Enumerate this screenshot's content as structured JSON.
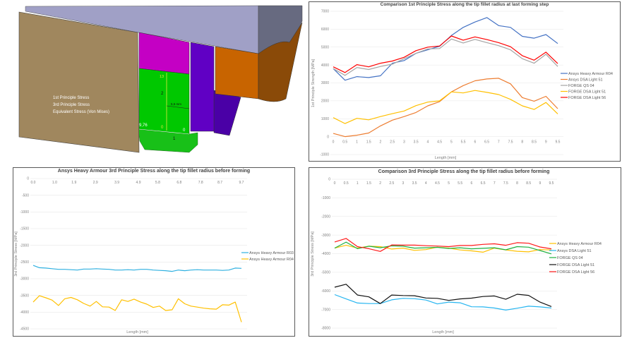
{
  "diagram": {
    "labels": [
      "1st Principle Stress",
      "3rd Principle Stress",
      "Equivalent Stress (Von Mises)"
    ],
    "annotations": {
      "top": "13",
      "middle": "2",
      "width": "5,5 mm",
      "left": "9,76",
      "bottom_yellow": "0",
      "bottom_right": "0",
      "lower": "1"
    }
  },
  "chart_data": [
    {
      "type": "line",
      "title": "Comparison 1st Principle Stress along the tip fillet radius at last forming step",
      "xlabel": "Length [mm]",
      "ylabel": "1st Principle Strength [MPa]",
      "ylim": [
        -1000,
        7000
      ],
      "yticks": [
        -1000,
        0,
        1000,
        2000,
        3000,
        4000,
        5000,
        6000,
        7000
      ],
      "grid": true,
      "legend": "right",
      "x": [
        0,
        0.5,
        1,
        1.5,
        2,
        2.5,
        3,
        3.5,
        4,
        4.5,
        5,
        5.5,
        6,
        6.5,
        7,
        7.5,
        8,
        8.5,
        9,
        9.5
      ],
      "xticklabels": [
        "0",
        "0.5",
        "1",
        "1.5",
        "2",
        "2.5",
        "3",
        "3.5",
        "4",
        "4.5",
        "5",
        "5.5",
        "6",
        "6.5",
        "7",
        "7.5",
        "8",
        "8.5",
        "9",
        "9.5"
      ],
      "series": [
        {
          "name": "Ansys Heavy Armour R04",
          "color": "#4472c4",
          "values": [
            3800,
            3150,
            3350,
            3300,
            3400,
            4100,
            4250,
            4650,
            4850,
            5050,
            5650,
            6100,
            6400,
            6650,
            6200,
            6100,
            5600,
            5500,
            5700,
            5200
          ]
        },
        {
          "name": "Ansys DSA Light 51",
          "color": "#ed7d31",
          "values": [
            180,
            0,
            80,
            200,
            600,
            920,
            1120,
            1350,
            1720,
            1950,
            2500,
            2850,
            3120,
            3220,
            3260,
            2950,
            2180,
            1980,
            2250,
            1560
          ]
        },
        {
          "name": "FORGE QS 04",
          "color": "#a5a5a5",
          "values": [
            3800,
            3420,
            3860,
            3750,
            3920,
            4050,
            4350,
            4650,
            4900,
            4920,
            5450,
            5230,
            5430,
            5250,
            5080,
            4850,
            4350,
            4100,
            4600,
            3920
          ]
        },
        {
          "name": "FORGE DSA Light 51",
          "color": "#ffc000",
          "values": [
            1060,
            730,
            1020,
            940,
            1120,
            1280,
            1430,
            1730,
            1930,
            2000,
            2500,
            2440,
            2580,
            2470,
            2350,
            2080,
            1720,
            1520,
            1910,
            1270
          ]
        },
        {
          "name": "FORGE DSA Light 56",
          "color": "#ff0000",
          "values": [
            3900,
            3580,
            4020,
            3900,
            4100,
            4220,
            4430,
            4800,
            5000,
            5060,
            5620,
            5390,
            5570,
            5420,
            5250,
            5020,
            4520,
            4270,
            4720,
            4080
          ]
        }
      ]
    },
    {
      "type": "line",
      "title": "Ansys Heavy Armour 3rd Principle Stress along the tip fillet radius before forming",
      "xlabel": "Length [mm]",
      "ylabel": "3rd Principle Stress [MPa]",
      "ylim": [
        -4500,
        0
      ],
      "yticks": [
        0,
        -500,
        -1000,
        -1500,
        -2000,
        -2500,
        -3000,
        -3500,
        -4000,
        -4500
      ],
      "grid": true,
      "legend": "right",
      "xlim": [
        0,
        9.7
      ],
      "xticks": [
        0,
        1.0,
        1.9,
        2.9,
        3.9,
        4.9,
        5.8,
        6.8,
        7.8,
        8.7,
        9.7
      ],
      "xticklabels": [
        "0.0",
        "1.0",
        "1.9",
        "2.9",
        "3.9",
        "4.9",
        "5.8",
        "6.8",
        "7.8",
        "8.7",
        "9.7"
      ],
      "x": [
        0,
        0.29,
        0.59,
        0.88,
        1.18,
        1.47,
        1.76,
        2.06,
        2.35,
        2.65,
        2.94,
        3.23,
        3.53,
        3.82,
        4.12,
        4.41,
        4.7,
        5.0,
        5.29,
        5.59,
        5.88,
        6.17,
        6.47,
        6.76,
        7.06,
        7.35,
        7.64,
        7.94,
        8.23,
        8.53,
        8.82,
        9.11,
        9.41,
        9.7
      ],
      "series": [
        {
          "name": "Ansys Heavy Armour R03",
          "color": "#2fb0e0",
          "values": [
            -2600,
            -2670,
            -2680,
            -2700,
            -2720,
            -2720,
            -2730,
            -2740,
            -2710,
            -2710,
            -2700,
            -2710,
            -2720,
            -2740,
            -2740,
            -2730,
            -2740,
            -2720,
            -2720,
            -2740,
            -2750,
            -2760,
            -2780,
            -2740,
            -2760,
            -2740,
            -2730,
            -2740,
            -2740,
            -2740,
            -2750,
            -2740,
            -2680,
            -2690
          ]
        },
        {
          "name": "Ansys Heavy Armour R04",
          "color": "#ffc000",
          "values": [
            -3700,
            -3510,
            -3570,
            -3640,
            -3800,
            -3600,
            -3560,
            -3630,
            -3740,
            -3820,
            -3680,
            -3840,
            -3850,
            -3950,
            -3630,
            -3680,
            -3610,
            -3700,
            -3760,
            -3860,
            -3820,
            -3950,
            -3930,
            -3600,
            -3750,
            -3820,
            -3850,
            -3880,
            -3900,
            -3910,
            -3780,
            -3790,
            -3700,
            -4300
          ]
        }
      ]
    },
    {
      "type": "line",
      "title": "Comparison 3rd Principle Stress along the tip fillet radius before forming",
      "xlabel": "Length [mm]",
      "ylabel": "3rd Principle Stress [MPa]",
      "ylim": [
        -8000,
        0
      ],
      "yticks": [
        0,
        -1000,
        -2000,
        -3000,
        -4000,
        -5000,
        -6000,
        -7000,
        -8000
      ],
      "grid": true,
      "legend": "right",
      "x": [
        0,
        0.5,
        1,
        1.5,
        2,
        2.5,
        3,
        3.5,
        4,
        4.5,
        5,
        5.5,
        6,
        6.5,
        7,
        7.5,
        8,
        8.5,
        9,
        9.5
      ],
      "xticklabels": [
        "0",
        "0.5",
        "1",
        "1.5",
        "2",
        "2.5",
        "3",
        "3.5",
        "4",
        "4.5",
        "5",
        "5.5",
        "6",
        "6.5",
        "7",
        "7.5",
        "8",
        "8.5",
        "9",
        "9.5"
      ],
      "series": [
        {
          "name": "Ansys Heavy Armour R04",
          "color": "#ffc000",
          "values": [
            -3700,
            -3550,
            -3700,
            -3600,
            -3620,
            -3750,
            -3700,
            -3820,
            -3780,
            -3650,
            -3700,
            -3800,
            -3850,
            -3920,
            -3700,
            -3800,
            -3870,
            -3900,
            -3780,
            -3800
          ]
        },
        {
          "name": "Ansys DSA Light 51",
          "color": "#26b5f0",
          "values": [
            -6200,
            -6430,
            -6650,
            -6680,
            -6680,
            -6480,
            -6400,
            -6420,
            -6490,
            -6700,
            -6600,
            -6640,
            -6850,
            -6860,
            -6920,
            -7030,
            -6930,
            -6820,
            -6860,
            -6920
          ]
        },
        {
          "name": "FORGE QS 04",
          "color": "#1fb040",
          "values": [
            -3700,
            -3380,
            -3730,
            -3600,
            -3680,
            -3580,
            -3600,
            -3700,
            -3680,
            -3660,
            -3720,
            -3680,
            -3740,
            -3710,
            -3680,
            -3790,
            -3620,
            -3650,
            -3830,
            -4010
          ]
        },
        {
          "name": "FORGE DSA Light 51",
          "color": "#111111",
          "values": [
            -5800,
            -5640,
            -6220,
            -6320,
            -6680,
            -6220,
            -6250,
            -6260,
            -6380,
            -6400,
            -6510,
            -6430,
            -6390,
            -6300,
            -6270,
            -6450,
            -6180,
            -6240,
            -6600,
            -6840
          ]
        },
        {
          "name": "FORGE DSA Light 56",
          "color": "#ff1a1a",
          "values": [
            -3370,
            -3180,
            -3620,
            -3730,
            -3880,
            -3530,
            -3540,
            -3540,
            -3570,
            -3590,
            -3620,
            -3560,
            -3560,
            -3500,
            -3470,
            -3550,
            -3410,
            -3440,
            -3640,
            -3740
          ]
        }
      ]
    }
  ]
}
